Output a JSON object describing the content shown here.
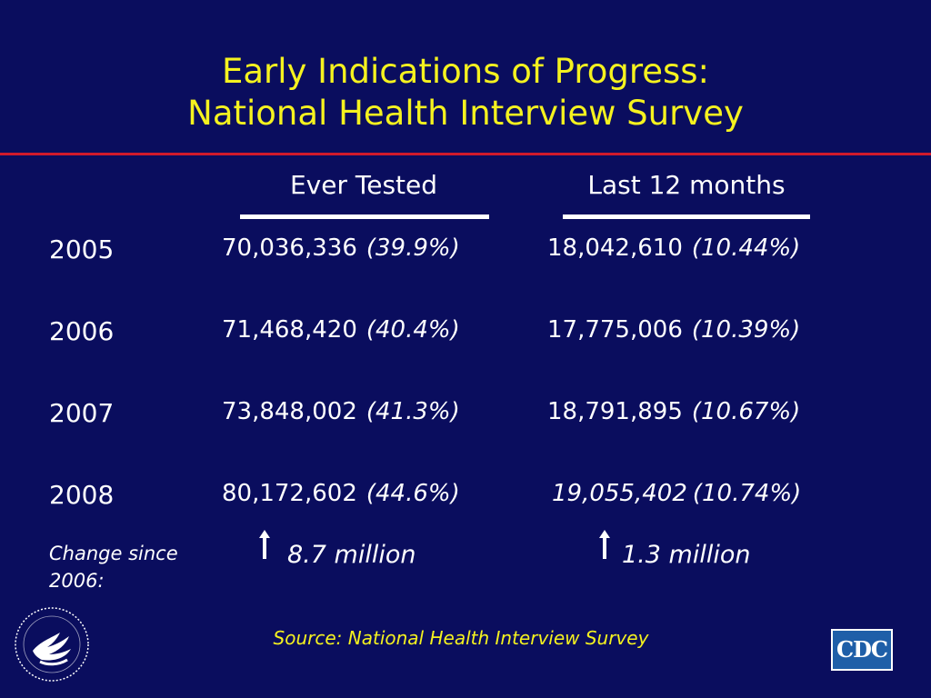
{
  "title": {
    "line1": "Early Indications of Progress:",
    "line2": "National Health Interview Survey"
  },
  "columns": {
    "ever_tested": "Ever Tested",
    "last_12_months": "Last 12 months"
  },
  "rows": [
    {
      "year": "2005",
      "ever_count": "70,036,336",
      "ever_pct": "(39.9%)",
      "last_count": "18,042,610",
      "last_pct": "(10.44%)"
    },
    {
      "year": "2006",
      "ever_count": "71,468,420",
      "ever_pct": "(40.4%)",
      "last_count": "17,775,006",
      "last_pct": "(10.39%)"
    },
    {
      "year": "2007",
      "ever_count": "73,848,002",
      "ever_pct": "(41.3%)",
      "last_count": "18,791,895",
      "last_pct": "(10.67%)"
    },
    {
      "year": "2008",
      "ever_count": "80,172,602",
      "ever_pct": "(44.6%)",
      "last_count": "19,055,402",
      "last_pct": "(10.74%)"
    }
  ],
  "change": {
    "label": "Change since 2006:",
    "ever_value": "8.7 million",
    "last_value": "1.3 million"
  },
  "source": "Source:  National Health Interview Survey",
  "logos": {
    "hhs": "hhs-eagle-icon",
    "cdc": "CDC"
  },
  "colors": {
    "background": "#0a0d5e",
    "title": "#f5f21f",
    "rule": "#d01a2b"
  }
}
